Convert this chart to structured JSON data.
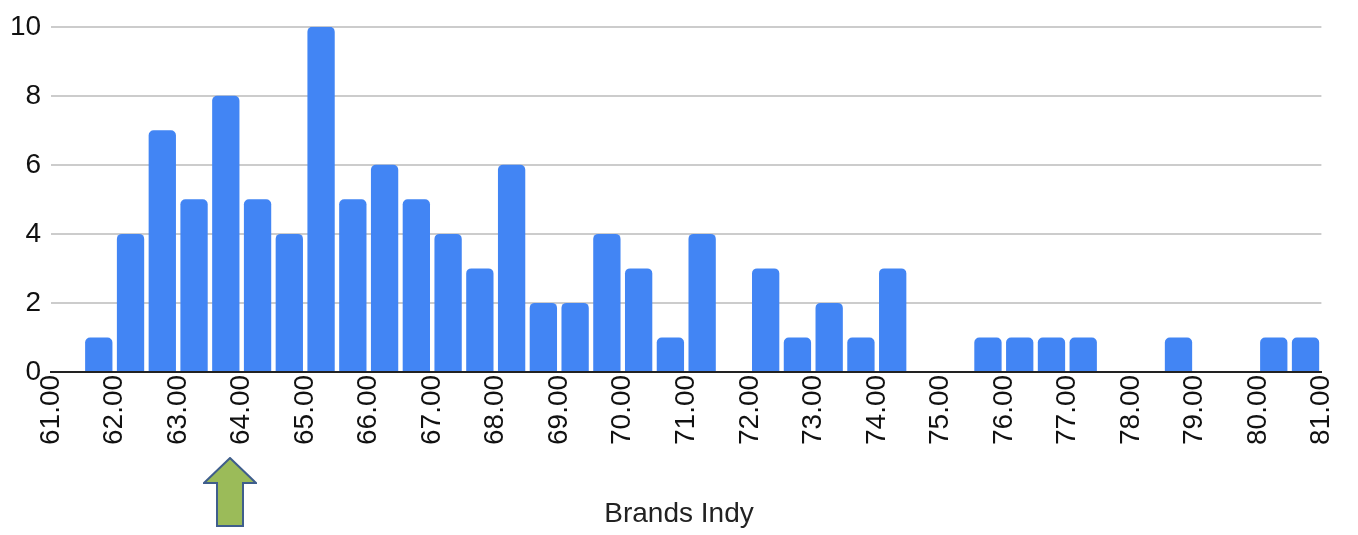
{
  "chart_data": {
    "type": "histogram",
    "xlabel": "Brands Indy",
    "bins": [
      61.5,
      62,
      62.5,
      63,
      63.5,
      64,
      64.5,
      65,
      65.5,
      66,
      66.5,
      67,
      67.5,
      68,
      68.5,
      69,
      69.5,
      70,
      70.5,
      71,
      71.5,
      72,
      72.5,
      73,
      73.5,
      74,
      74.5,
      75,
      75.5,
      76,
      76.5,
      77,
      77.5,
      78,
      78.5,
      79,
      79.5,
      80,
      80.5,
      81
    ],
    "values": [
      1,
      4,
      7,
      5,
      8,
      5,
      4,
      10,
      5,
      6,
      5,
      4,
      3,
      6,
      2,
      2,
      4,
      3,
      1,
      4,
      0,
      3,
      1,
      2,
      1,
      3,
      0,
      0,
      1,
      1,
      1,
      1,
      0,
      0,
      1,
      0,
      0,
      1,
      1
    ],
    "color": "#4285f4",
    "xlim": [
      61,
      81
    ],
    "xticks": [
      {
        "value": 61,
        "label": "61.00"
      },
      {
        "value": 62,
        "label": "62.00"
      },
      {
        "value": 63,
        "label": "63.00"
      },
      {
        "value": 64,
        "label": "64.00"
      },
      {
        "value": 65,
        "label": "65.00"
      },
      {
        "value": 66,
        "label": "66.00"
      },
      {
        "value": 67,
        "label": "67.00"
      },
      {
        "value": 68,
        "label": "68.00"
      },
      {
        "value": 69,
        "label": "69.00"
      },
      {
        "value": 70,
        "label": "70.00"
      },
      {
        "value": 71,
        "label": "71.00"
      },
      {
        "value": 72,
        "label": "72.00"
      },
      {
        "value": 73,
        "label": "73.00"
      },
      {
        "value": 74,
        "label": "74.00"
      },
      {
        "value": 75,
        "label": "75.00"
      },
      {
        "value": 76,
        "label": "76.00"
      },
      {
        "value": 77,
        "label": "77.00"
      },
      {
        "value": 78,
        "label": "78.00"
      },
      {
        "value": 79,
        "label": "79.00"
      },
      {
        "value": 80,
        "label": "80.00"
      },
      {
        "value": 81,
        "label": "81.00"
      }
    ],
    "ylim": [
      0,
      10
    ],
    "yticks": [
      0,
      2,
      4,
      6,
      8,
      10
    ],
    "grid": "y",
    "legend": false
  }
}
